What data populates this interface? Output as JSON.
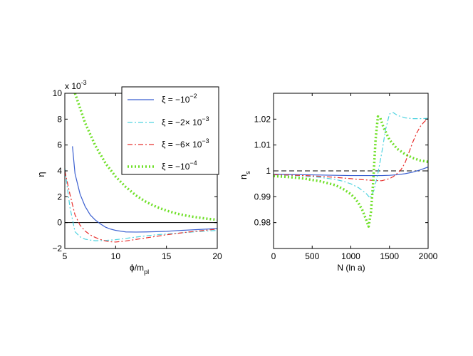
{
  "chart_data": [
    {
      "type": "line",
      "xlabel_main": "ϕ/m",
      "xlabel_sub": "pl",
      "ylabel": "η",
      "y_multiplier": {
        "base": "x 10",
        "exp": "-3"
      },
      "xlim": [
        5,
        20
      ],
      "ylim": [
        -2,
        10
      ],
      "xticks": [
        5,
        10,
        15,
        20
      ],
      "yticks": [
        -2,
        0,
        2,
        4,
        6,
        8,
        10
      ],
      "xtick_labels": [
        "5",
        "10",
        "15",
        "20"
      ],
      "ytick_labels": [
        "−2",
        "0",
        "2",
        "4",
        "6",
        "8",
        "10"
      ],
      "reference_line": {
        "y": 0,
        "color": "#000000"
      },
      "legend": [
        {
          "sym": "ξ = −10",
          "exp": "−2"
        },
        {
          "sym": "ξ = −2× 10",
          "exp": "−3"
        },
        {
          "sym": "ξ = −6× 10",
          "exp": "−3"
        },
        {
          "sym": "ξ = −10",
          "exp": "−4"
        }
      ],
      "series": [
        {
          "name": "ξ = −10^−2",
          "color": "#3a5fd0",
          "style": "solid",
          "x": [
            5.75,
            6.0,
            6.5,
            7.0,
            7.5,
            8.0,
            8.5,
            9.0,
            9.5,
            10.0,
            11.0,
            12.0,
            13.0,
            14.0,
            15.0,
            16.0,
            17.0,
            18.0,
            19.0,
            20.0
          ],
          "y": [
            5.9,
            3.8,
            2.2,
            1.25,
            0.6,
            0.2,
            -0.1,
            -0.35,
            -0.5,
            -0.6,
            -0.72,
            -0.73,
            -0.72,
            -0.7,
            -0.67,
            -0.62,
            -0.58,
            -0.54,
            -0.5,
            -0.45
          ]
        },
        {
          "name": "ξ = −2×10^−3",
          "color": "#4fd3e0",
          "style": "dashdot",
          "x": [
            5.0,
            5.5,
            6.0,
            6.5,
            7.0,
            7.5,
            8.0,
            9.0,
            10.0,
            11.0,
            12.0,
            13.0,
            14.0,
            15.0,
            16.0,
            17.0,
            18.0,
            19.0,
            20.0
          ],
          "y": [
            4.2,
            1.2,
            -0.7,
            -1.1,
            -1.28,
            -1.35,
            -1.4,
            -1.38,
            -1.32,
            -1.22,
            -1.12,
            -1.02,
            -0.94,
            -0.88,
            -0.82,
            -0.76,
            -0.7,
            -0.65,
            -0.6
          ]
        },
        {
          "name": "ξ = −6×10^−3",
          "color": "#e8302e",
          "style": "dashdot",
          "x": [
            5.0,
            5.5,
            6.0,
            6.5,
            7.0,
            7.5,
            8.0,
            8.5,
            9.0,
            9.5,
            10.0,
            11.0,
            12.0,
            13.0,
            14.0,
            15.0,
            16.0,
            17.0,
            18.0,
            19.0,
            20.0
          ],
          "y": [
            4.0,
            2.2,
            0.6,
            -0.2,
            -0.65,
            -0.95,
            -1.15,
            -1.3,
            -1.42,
            -1.48,
            -1.5,
            -1.42,
            -1.3,
            -1.18,
            -1.06,
            -0.94,
            -0.84,
            -0.74,
            -0.66,
            -0.58,
            -0.5
          ]
        },
        {
          "name": "ξ = −10^−4",
          "color": "#6fe028",
          "style": "dotted",
          "x": [
            6.0,
            7.0,
            8.0,
            9.0,
            10.0,
            11.0,
            12.0,
            13.0,
            14.0,
            15.0,
            16.0,
            17.0,
            18.0,
            19.0,
            20.0
          ],
          "y": [
            10.0,
            7.7,
            5.95,
            4.6,
            3.55,
            2.75,
            2.1,
            1.6,
            1.22,
            0.93,
            0.7,
            0.53,
            0.41,
            0.3,
            0.22
          ]
        }
      ]
    },
    {
      "type": "line",
      "xlabel": "N (ln a)",
      "ylabel_main": "n",
      "ylabel_sub": "s",
      "xlim": [
        0,
        2000
      ],
      "ylim": [
        0.97,
        1.03
      ],
      "xticks": [
        0,
        500,
        1000,
        1500,
        2000
      ],
      "yticks": [
        0.98,
        0.99,
        1.0,
        1.01,
        1.02
      ],
      "xtick_labels": [
        "0",
        "500",
        "1000",
        "1500",
        "2000"
      ],
      "ytick_labels": [
        "0.98",
        "0.99",
        "1",
        "1.01",
        "1.02"
      ],
      "reference_line": {
        "y": 1.0,
        "color": "#000000",
        "style": "dashed"
      },
      "series": [
        {
          "name": "ξ = −10^−2",
          "color": "#3a5fd0",
          "style": "solid",
          "x": [
            0,
            200,
            400,
            600,
            800,
            1000,
            1200,
            1400,
            1500,
            1600,
            1700,
            1800,
            1900,
            2000
          ],
          "y": [
            0.9987,
            0.9986,
            0.9985,
            0.9984,
            0.9983,
            0.9982,
            0.9982,
            0.9982,
            0.9983,
            0.9985,
            0.9989,
            0.9995,
            1.0004,
            1.0015
          ]
        },
        {
          "name": "ξ = −2×10^−3",
          "color": "#4fd3e0",
          "style": "dashdot",
          "x": [
            0,
            200,
            400,
            600,
            800,
            900,
            1000,
            1100,
            1200,
            1250,
            1300,
            1350,
            1400,
            1450,
            1500,
            1550,
            1600,
            1700,
            1800,
            1900,
            2000
          ],
          "y": [
            0.9985,
            0.9983,
            0.998,
            0.9975,
            0.9967,
            0.996,
            0.995,
            0.9935,
            0.9912,
            0.9895,
            0.9925,
            0.999,
            1.007,
            1.016,
            1.022,
            1.0225,
            1.0215,
            1.0205,
            1.0202,
            1.0202,
            1.0203
          ]
        },
        {
          "name": "ξ = −6×10^−3",
          "color": "#e8302e",
          "style": "dashdot",
          "x": [
            0,
            200,
            400,
            600,
            800,
            1000,
            1100,
            1200,
            1300,
            1400,
            1500,
            1550,
            1600,
            1650,
            1700,
            1750,
            1800,
            1850,
            1900,
            1950,
            2000
          ],
          "y": [
            0.9985,
            0.9984,
            0.9982,
            0.9979,
            0.9975,
            0.997,
            0.9967,
            0.9965,
            0.9963,
            0.9962,
            0.997,
            0.9978,
            0.999,
            1.0005,
            1.003,
            1.007,
            1.011,
            1.0145,
            1.0172,
            1.019,
            1.0202
          ]
        },
        {
          "name": "ξ = −10^−4",
          "color": "#6fe028",
          "style": "dotted",
          "x": [
            0,
            200,
            400,
            600,
            800,
            900,
            1000,
            1050,
            1100,
            1150,
            1200,
            1230,
            1260,
            1290,
            1320,
            1350,
            1380,
            1420,
            1500,
            1600,
            1700,
            1800,
            1900,
            2000
          ],
          "y": [
            0.998,
            0.9976,
            0.997,
            0.996,
            0.9945,
            0.993,
            0.991,
            0.9895,
            0.9875,
            0.9848,
            0.981,
            0.9785,
            0.984,
            0.996,
            1.012,
            1.021,
            1.0205,
            1.017,
            1.012,
            1.0085,
            1.0065,
            1.005,
            1.004,
            1.0035
          ]
        }
      ]
    }
  ]
}
